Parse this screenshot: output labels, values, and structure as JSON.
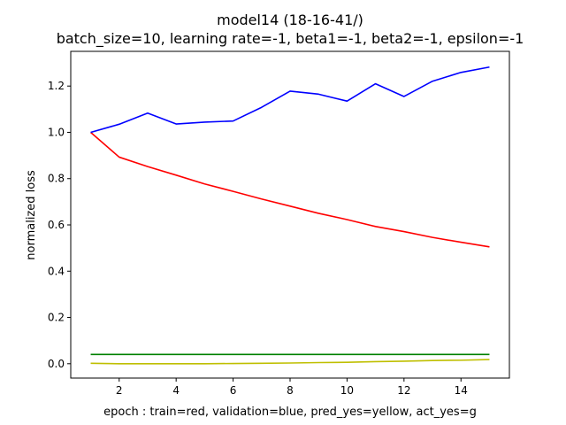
{
  "chart_data": {
    "type": "line",
    "title": "model14 (18-16-41/)",
    "subtitle": "batch_size=10, learning rate=-1, beta1=-1, beta2=-1, epsilon=-1",
    "xlabel": "epoch : train=red, validation=blue, pred_yes=yellow, act_yes=g",
    "ylabel": "normalized loss",
    "x": [
      1,
      2,
      3,
      4,
      5,
      6,
      7,
      8,
      9,
      10,
      11,
      12,
      13,
      14,
      15
    ],
    "xlim": [
      0.3,
      15.7
    ],
    "ylim": [
      -0.062,
      1.35
    ],
    "xticks": [
      2,
      4,
      6,
      8,
      10,
      12,
      14
    ],
    "yticks": [
      0.0,
      0.2,
      0.4,
      0.6,
      0.8,
      1.0,
      1.2
    ],
    "ytick_labels": [
      "0.0",
      "0.2",
      "0.4",
      "0.6",
      "0.8",
      "1.0",
      "1.2"
    ],
    "grid": false,
    "series": [
      {
        "color": "#ff0000",
        "values": [
          1.0,
          0.893,
          0.852,
          0.815,
          0.777,
          0.745,
          0.712,
          0.681,
          0.65,
          0.623,
          0.593,
          0.571,
          0.546,
          0.525,
          0.505
        ]
      },
      {
        "color": "#0000ff",
        "values": [
          1.0,
          1.035,
          1.083,
          1.036,
          1.044,
          1.049,
          1.108,
          1.178,
          1.165,
          1.135,
          1.21,
          1.155,
          1.221,
          1.259,
          1.282
        ]
      },
      {
        "color": "#008000",
        "values": [
          0.04,
          0.04,
          0.04,
          0.04,
          0.04,
          0.04,
          0.04,
          0.04,
          0.04,
          0.04,
          0.04,
          0.04,
          0.04,
          0.04,
          0.04
        ]
      },
      {
        "color": "#bfbf00",
        "values": [
          0.002,
          0.0,
          0.0,
          0.0,
          0.0,
          0.001,
          0.002,
          0.003,
          0.005,
          0.006,
          0.009,
          0.011,
          0.014,
          0.015,
          0.018
        ]
      }
    ]
  }
}
